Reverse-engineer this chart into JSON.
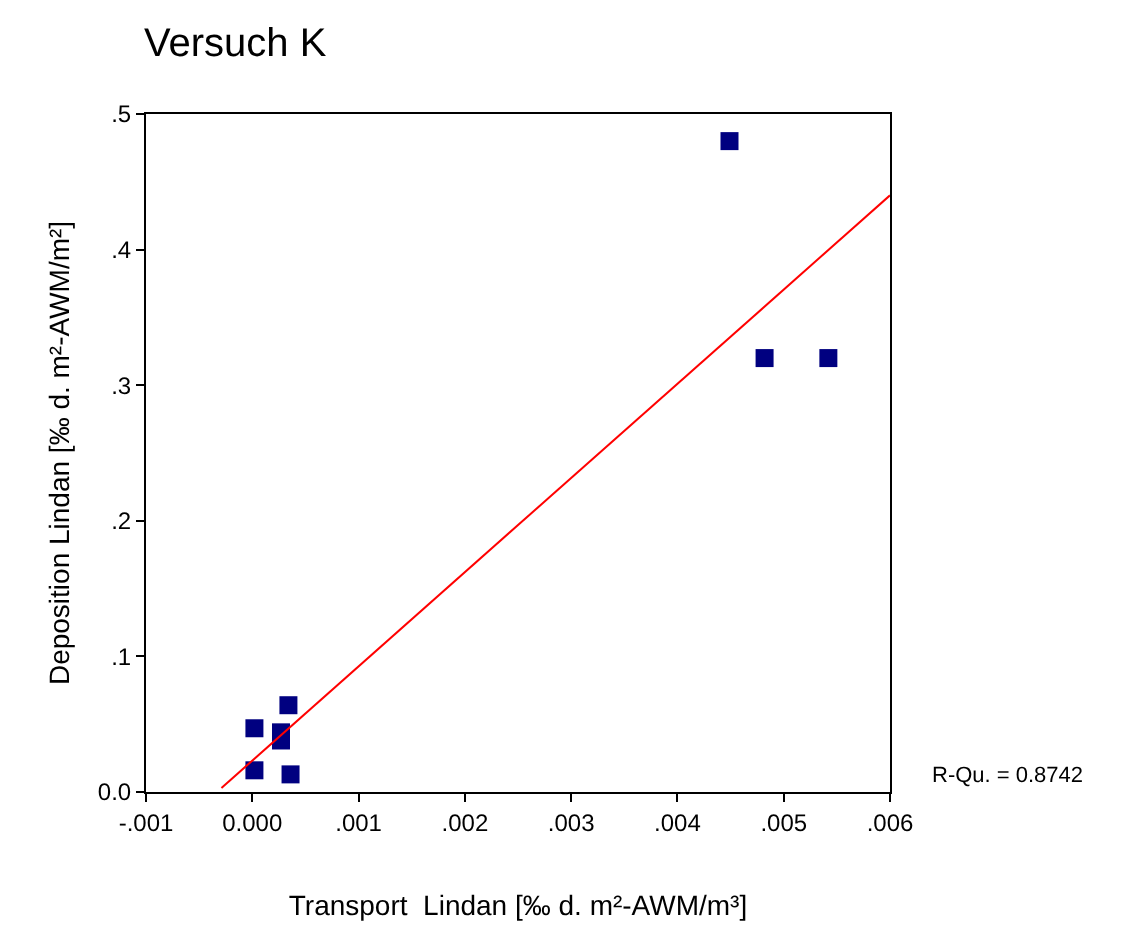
{
  "chart_data": {
    "type": "scatter",
    "title": "Versuch K",
    "xlabel": "Transport  Lindan [‰ d. m²-AWM/m³]",
    "ylabel": "Deposition Lindan [‰ d. m²-AWM/m²]",
    "series": [
      {
        "color": "#000080",
        "marker": "square",
        "x": [
          2e-05,
          2e-05,
          0.00034,
          0.00027,
          0.00027,
          0.00036,
          0.00449,
          0.00482,
          0.00542
        ],
        "values": [
          0.047,
          0.016,
          0.064,
          0.044,
          0.038,
          0.013,
          0.48,
          0.32,
          0.32
        ]
      },
      {
        "type": "line",
        "color": "#ff0000",
        "marker": "none",
        "line_style": "solid",
        "x": [
          -0.00029,
          0.006
        ],
        "values": [
          0.003,
          0.44
        ]
      }
    ],
    "xlim": [
      -0.001,
      0.006
    ],
    "xticks": [
      {
        "value": -0.001,
        "label": "-.001"
      },
      {
        "value": 0,
        "label": "0.000"
      },
      {
        "value": 0.001,
        "label": ".001"
      },
      {
        "value": 0.002,
        "label": ".002"
      },
      {
        "value": 0.003,
        "label": ".003"
      },
      {
        "value": 0.004,
        "label": ".004"
      },
      {
        "value": 0.005,
        "label": ".005"
      },
      {
        "value": 0.006,
        "label": ".006"
      }
    ],
    "ylim": [
      0,
      0.5
    ],
    "yticks": [
      {
        "value": 0,
        "label": "0.0"
      },
      {
        "value": 0.1,
        "label": ".1"
      },
      {
        "value": 0.2,
        "label": ".2"
      },
      {
        "value": 0.3,
        "label": ".3"
      },
      {
        "value": 0.4,
        "label": ".4"
      },
      {
        "value": 0.5,
        "label": ".5"
      }
    ],
    "annotations": [
      "R-Qu. = 0.8742"
    ]
  }
}
